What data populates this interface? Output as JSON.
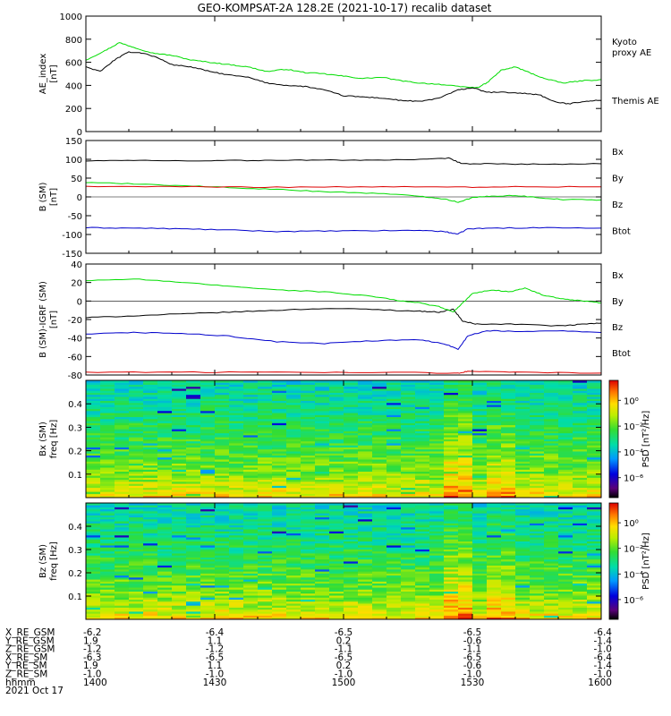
{
  "title": "GEO-KOMPSAT-2A 128.2E (2021-10-17) recalib dataset",
  "colors": {
    "black": "#000000",
    "green": "#00dd00",
    "red": "#dd0000",
    "blue": "#0000cc"
  },
  "chart_data": [
    {
      "type": "line",
      "ylabel": [
        "AE_index",
        "[nT]"
      ],
      "ylim": [
        0,
        1000
      ],
      "yticks": [
        0,
        200,
        400,
        600,
        800,
        1000
      ],
      "x": [
        "1400",
        "1430",
        "1500",
        "1530",
        "1600"
      ],
      "series": [
        {
          "name": "Kyoto proxy AE",
          "label_lines": [
            "Kyoto",
            "proxy AE"
          ],
          "color": "#00dd00",
          "points": [
            [
              0,
              620
            ],
            [
              4,
              700
            ],
            [
              7,
              770
            ],
            [
              10,
              730
            ],
            [
              14,
              680
            ],
            [
              18,
              660
            ],
            [
              22,
              620
            ],
            [
              26,
              600
            ],
            [
              30,
              580
            ],
            [
              34,
              560
            ],
            [
              38,
              520
            ],
            [
              42,
              540
            ],
            [
              46,
              510
            ],
            [
              50,
              500
            ],
            [
              54,
              480
            ],
            [
              58,
              460
            ],
            [
              62,
              470
            ],
            [
              66,
              440
            ],
            [
              70,
              420
            ],
            [
              74,
              410
            ],
            [
              78,
              390
            ],
            [
              82,
              380
            ],
            [
              84,
              420
            ],
            [
              87,
              530
            ],
            [
              90,
              560
            ],
            [
              93,
              510
            ],
            [
              96,
              460
            ],
            [
              100,
              420
            ],
            [
              104,
              440
            ],
            [
              108,
              450
            ]
          ]
        },
        {
          "name": "Themis AE",
          "label_lines": [
            "Themis AE"
          ],
          "color": "#000000",
          "points": [
            [
              0,
              560
            ],
            [
              3,
              520
            ],
            [
              6,
              620
            ],
            [
              9,
              690
            ],
            [
              12,
              680
            ],
            [
              15,
              640
            ],
            [
              18,
              580
            ],
            [
              22,
              560
            ],
            [
              26,
              520
            ],
            [
              30,
              490
            ],
            [
              34,
              470
            ],
            [
              38,
              420
            ],
            [
              42,
              400
            ],
            [
              46,
              390
            ],
            [
              50,
              360
            ],
            [
              54,
              310
            ],
            [
              58,
              300
            ],
            [
              62,
              290
            ],
            [
              66,
              270
            ],
            [
              70,
              260
            ],
            [
              74,
              290
            ],
            [
              78,
              360
            ],
            [
              81,
              380
            ],
            [
              84,
              340
            ],
            [
              88,
              340
            ],
            [
              92,
              330
            ],
            [
              95,
              320
            ],
            [
              98,
              260
            ],
            [
              101,
              240
            ],
            [
              105,
              265
            ],
            [
              108,
              270
            ]
          ]
        }
      ]
    },
    {
      "type": "line",
      "ylabel": [
        "B (SM)",
        "[nT]"
      ],
      "ylim": [
        -150,
        150
      ],
      "yticks": [
        -150,
        -100,
        -50,
        0,
        50,
        100,
        150
      ],
      "x": [
        "1400",
        "1430",
        "1500",
        "1530",
        "1600"
      ],
      "series": [
        {
          "name": "Bx",
          "color": "#0000cc",
          "points": [
            [
              0,
              -82
            ],
            [
              10,
              -83
            ],
            [
              20,
              -85
            ],
            [
              30,
              -88
            ],
            [
              40,
              -92
            ],
            [
              50,
              -91
            ],
            [
              60,
              -90
            ],
            [
              70,
              -89
            ],
            [
              75,
              -92
            ],
            [
              78,
              -99
            ],
            [
              80,
              -85
            ],
            [
              85,
              -83
            ],
            [
              95,
              -82
            ],
            [
              108,
              -83
            ]
          ]
        },
        {
          "name": "By",
          "color": "#00dd00",
          "points": [
            [
              0,
              38
            ],
            [
              10,
              35
            ],
            [
              20,
              30
            ],
            [
              30,
              25
            ],
            [
              40,
              20
            ],
            [
              50,
              14
            ],
            [
              60,
              10
            ],
            [
              70,
              2
            ],
            [
              75,
              -5
            ],
            [
              78,
              -14
            ],
            [
              81,
              -2
            ],
            [
              85,
              2
            ],
            [
              90,
              4
            ],
            [
              95,
              -2
            ],
            [
              100,
              -7
            ],
            [
              108,
              -8
            ]
          ]
        },
        {
          "name": "Bz",
          "color": "#dd0000",
          "points": [
            [
              0,
              28
            ],
            [
              20,
              27
            ],
            [
              40,
              26
            ],
            [
              60,
              27
            ],
            [
              78,
              26
            ],
            [
              90,
              27
            ],
            [
              108,
              27
            ]
          ]
        },
        {
          "name": "Btot",
          "color": "#000000",
          "points": [
            [
              0,
              96
            ],
            [
              10,
              97
            ],
            [
              20,
              96
            ],
            [
              30,
              97
            ],
            [
              40,
              97
            ],
            [
              50,
              98
            ],
            [
              60,
              98
            ],
            [
              70,
              99
            ],
            [
              76,
              103
            ],
            [
              79,
              88
            ],
            [
              85,
              88
            ],
            [
              95,
              87
            ],
            [
              108,
              88
            ]
          ]
        }
      ]
    },
    {
      "type": "line",
      "ylabel": [
        "B (SM)-IGRF (SM)",
        "[nT]"
      ],
      "ylim": [
        -80,
        40
      ],
      "yticks": [
        -80,
        -60,
        -40,
        -20,
        0,
        20,
        40
      ],
      "x": [
        "1400",
        "1430",
        "1500",
        "1530",
        "1600"
      ],
      "series": [
        {
          "name": "Bx",
          "color": "#000000",
          "points": [
            [
              0,
              -18
            ],
            [
              10,
              -16
            ],
            [
              20,
              -14
            ],
            [
              30,
              -12
            ],
            [
              40,
              -10
            ],
            [
              50,
              -8
            ],
            [
              60,
              -9
            ],
            [
              70,
              -11
            ],
            [
              74,
              -12
            ],
            [
              77,
              -9
            ],
            [
              79,
              -22
            ],
            [
              82,
              -25
            ],
            [
              90,
              -25
            ],
            [
              100,
              -27
            ],
            [
              104,
              -25
            ],
            [
              108,
              -24
            ]
          ]
        },
        {
          "name": "By",
          "color": "#00dd00",
          "points": [
            [
              0,
              22
            ],
            [
              10,
              24
            ],
            [
              20,
              20
            ],
            [
              30,
              16
            ],
            [
              40,
              12
            ],
            [
              50,
              10
            ],
            [
              60,
              5
            ],
            [
              66,
              0
            ],
            [
              70,
              -2
            ],
            [
              74,
              -6
            ],
            [
              77,
              -12
            ],
            [
              79,
              -2
            ],
            [
              81,
              8
            ],
            [
              85,
              12
            ],
            [
              89,
              10
            ],
            [
              92,
              14
            ],
            [
              96,
              6
            ],
            [
              100,
              2
            ],
            [
              104,
              0
            ],
            [
              108,
              -2
            ]
          ]
        },
        {
          "name": "Bz",
          "color": "#0000cc",
          "points": [
            [
              0,
              -36
            ],
            [
              10,
              -34
            ],
            [
              20,
              -35
            ],
            [
              30,
              -38
            ],
            [
              40,
              -44
            ],
            [
              50,
              -46
            ],
            [
              60,
              -43
            ],
            [
              70,
              -42
            ],
            [
              75,
              -46
            ],
            [
              78,
              -52
            ],
            [
              80,
              -38
            ],
            [
              84,
              -32
            ],
            [
              90,
              -33
            ],
            [
              100,
              -32
            ],
            [
              108,
              -34
            ]
          ]
        },
        {
          "name": "Btot",
          "color": "#dd0000",
          "points": [
            [
              0,
              -77
            ],
            [
              20,
              -77
            ],
            [
              40,
              -77
            ],
            [
              60,
              -77
            ],
            [
              78,
              -78
            ],
            [
              80,
              -76
            ],
            [
              90,
              -77
            ],
            [
              108,
              -78
            ]
          ]
        }
      ]
    },
    {
      "type": "heatmap",
      "ylabel": [
        "Bx (SM)",
        "freq [Hz]"
      ],
      "ylim": [
        0,
        0.5
      ],
      "yticks": [
        0.1,
        0.2,
        0.3,
        0.4
      ],
      "colorbar": {
        "label": "PSD [nT²/Hz]",
        "ticks": [
          "10⁰",
          "10⁻²",
          "10⁻⁴",
          "10⁻⁶"
        ]
      },
      "x": [
        "1400",
        "1430",
        "1500",
        "1530",
        "1600"
      ]
    },
    {
      "type": "heatmap",
      "ylabel": [
        "Bz (SM)",
        "freq [Hz]"
      ],
      "ylim": [
        0,
        0.5
      ],
      "yticks": [
        0.1,
        0.2,
        0.3,
        0.4
      ],
      "colorbar": {
        "label": "PSD [nT²/Hz]",
        "ticks": [
          "10⁰",
          "10⁻²",
          "10⁻⁴",
          "10⁻⁶"
        ]
      },
      "x": [
        "1400",
        "1430",
        "1500",
        "1530",
        "1600"
      ]
    }
  ],
  "ephemeris": {
    "rows": [
      {
        "label": "X_RE_GSM",
        "values": [
          "-6.2",
          "-6.4",
          "-6.5",
          "-6.5",
          "-6.4"
        ]
      },
      {
        "label": "Y_RE_GSM",
        "values": [
          "1.9",
          "1.1",
          "0.2",
          "-0.6",
          "-1.4"
        ]
      },
      {
        "label": "Z_RE_GSM",
        "values": [
          "-1.2",
          "-1.2",
          "-1.1",
          "-1.1",
          "-1.0"
        ]
      },
      {
        "label": "X_RE_SM",
        "values": [
          "-6.3",
          "-6.5",
          "-6.5",
          "-6.5",
          "-6.4"
        ]
      },
      {
        "label": "Y_RE_SM",
        "values": [
          "1.9",
          "1.1",
          "0.2",
          "-0.6",
          "-1.4"
        ]
      },
      {
        "label": "Z_RE_SM",
        "values": [
          "-1.0",
          "-1.0",
          "-1.0",
          "-1.0",
          "-1.0"
        ]
      },
      {
        "label": "hhmm",
        "values": [
          "1400",
          "1430",
          "1500",
          "1530",
          "1600"
        ]
      }
    ],
    "date": "2021 Oct 17"
  }
}
